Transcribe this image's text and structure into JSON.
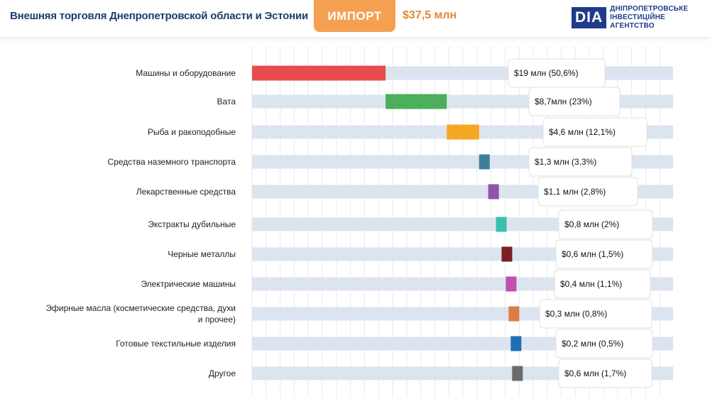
{
  "header": {
    "title": "Внешняя торговля Днепропетровской области и Эстонии",
    "tab_label": "ИМПОРТ",
    "total": "$37,5 млн",
    "logo_mark": "DIA",
    "logo_line1": "ДНІПРОПЕТРОВСЬКЕ",
    "logo_line2": "ІНВЕСТИЦІЙНЕ АГЕНТСТВО"
  },
  "chart_data": {
    "type": "bar",
    "orientation": "horizontal",
    "layout": "waterfall",
    "unit": "$ млн",
    "categories": [
      [
        "Машины и оборудование"
      ],
      [
        "Вата"
      ],
      [
        "Рыба и ракоподобные"
      ],
      [
        "Средства наземного транспорта"
      ],
      [
        "Лекарственные средства"
      ],
      [
        "Экстракты дубильные"
      ],
      [
        "Черные металлы"
      ],
      [
        "Электрические машины"
      ],
      [
        "Эфирные масла (косметические средства, духи",
        "и прочее)"
      ],
      [
        "Готовые текстильные изделия"
      ],
      [
        "Другое"
      ]
    ],
    "values": [
      19,
      8.7,
      4.6,
      1.3,
      1.1,
      0.8,
      0.6,
      0.4,
      0.3,
      0.2,
      0.6
    ],
    "shares_pct": [
      50.6,
      23,
      12.1,
      3.3,
      2.8,
      2,
      1.5,
      1.1,
      0.8,
      0.5,
      1.7
    ],
    "value_labels": [
      "$19 млн (50,6%)",
      "$8,7млн (23%)",
      "$4,6 млн (12,1%)",
      "$1,3  млн (3,3%)",
      "$1,1 млн (2,8%)",
      "$0,8 млн (2%)",
      "$0,6 млн (1,5%)",
      "$0,4 млн (1,1%)",
      "$0,3 млн (0,8%)",
      "$0,2 млн (0,5%)",
      "$0,6 млн (1,7%)"
    ],
    "colors": [
      "#e84c4c",
      "#4caf5a",
      "#f5a623",
      "#3d7f99",
      "#8e55a8",
      "#3bbfb0",
      "#7b1f1f",
      "#c14fb0",
      "#e07b45",
      "#1f6fb8",
      "#6b6b6b"
    ],
    "track_color": "#dce4ef",
    "grid": true
  }
}
